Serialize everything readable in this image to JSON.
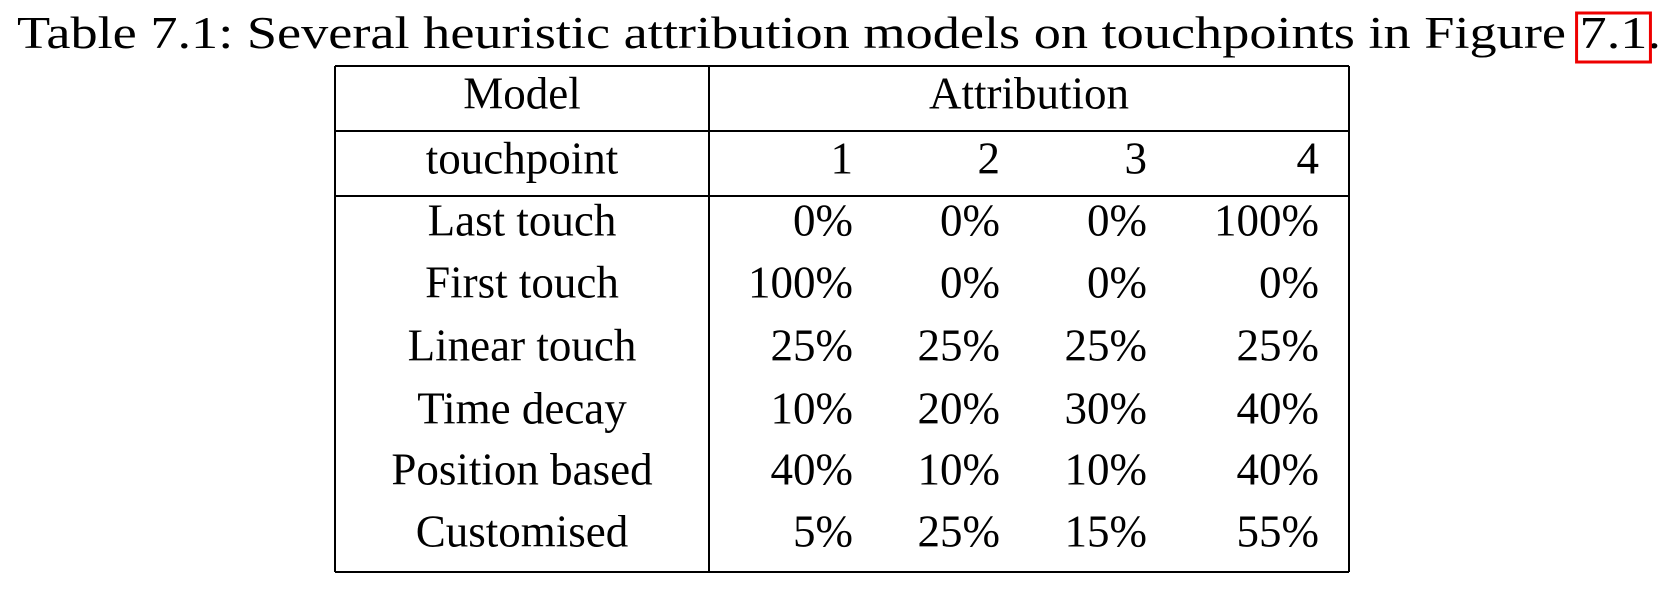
{
  "caption": {
    "label": "Table 7.1:",
    "text": "Several heuristic attribution models on touchpoints in Figure",
    "ref": "7.1",
    "suffix": "."
  },
  "table": {
    "header": [
      "Model",
      "Attribution"
    ],
    "subheader": [
      "touchpoint",
      "1",
      "2",
      "3",
      "4"
    ],
    "rows": [
      [
        "Last touch",
        "0%",
        "0%",
        "0%",
        "100%"
      ],
      [
        "First touch",
        "100%",
        "0%",
        "0%",
        "0%"
      ],
      [
        "Linear touch",
        "25%",
        "25%",
        "25%",
        "25%"
      ],
      [
        "Time decay",
        "10%",
        "20%",
        "30%",
        "40%"
      ],
      [
        "Position based",
        "40%",
        "10%",
        "10%",
        "40%"
      ],
      [
        "Customised",
        "5%",
        "25%",
        "15%",
        "55%"
      ]
    ]
  }
}
